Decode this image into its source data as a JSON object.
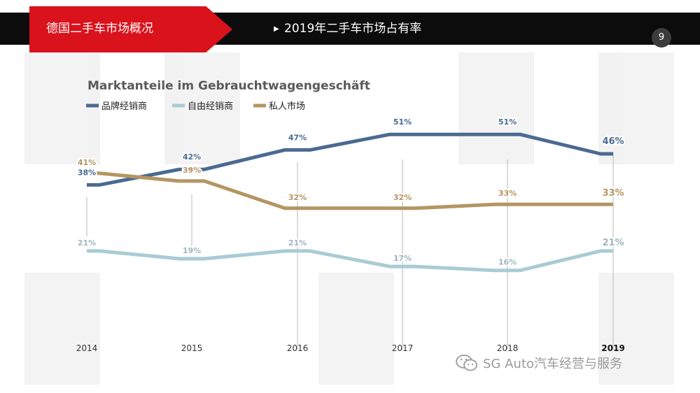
{
  "header": {
    "section_title": "德国二手车市场概况",
    "slide_title": "2019年二手车市场占有率",
    "page_number": "9",
    "arrow_icon": "play-arrow-icon"
  },
  "watermark": {
    "text": "SG Auto汽车经营与服务",
    "icon": "wechat-icon"
  },
  "colors": {
    "header_bg": "#0c0c0c",
    "accent_red": "#d9121c",
    "series_dealer": "#4b6a92",
    "series_independent": "#a9cbd4",
    "series_private": "#b49562",
    "title_gray": "#5a5a5a"
  },
  "chart_data": {
    "type": "line",
    "title": "Marktanteile im Gebrauchtwagengeschäft",
    "xlabel": "",
    "ylabel": "",
    "categories": [
      "2014",
      "2015",
      "2016",
      "2017",
      "2018",
      "2019"
    ],
    "highlight_category": "2019",
    "ylim": [
      10,
      55
    ],
    "grid": false,
    "legend_position": "top-left",
    "series": [
      {
        "name": "品牌经销商",
        "values": [
          38,
          42,
          47,
          51,
          51,
          46
        ],
        "labels": [
          "38%",
          "42%",
          "47%",
          "51%",
          "51%",
          "46%"
        ],
        "color": "#4b6a92"
      },
      {
        "name": "自由经销商",
        "values": [
          21,
          19,
          21,
          17,
          16,
          21
        ],
        "labels": [
          "21%",
          "19%",
          "21%",
          "17%",
          "16%",
          "21%"
        ],
        "color": "#a9cbd4"
      },
      {
        "name": "私人市场",
        "values": [
          41,
          39,
          32,
          32,
          33,
          33
        ],
        "labels": [
          "41%",
          "39%",
          "32%",
          "32%",
          "33%",
          "33%"
        ],
        "color": "#b49562"
      }
    ]
  }
}
